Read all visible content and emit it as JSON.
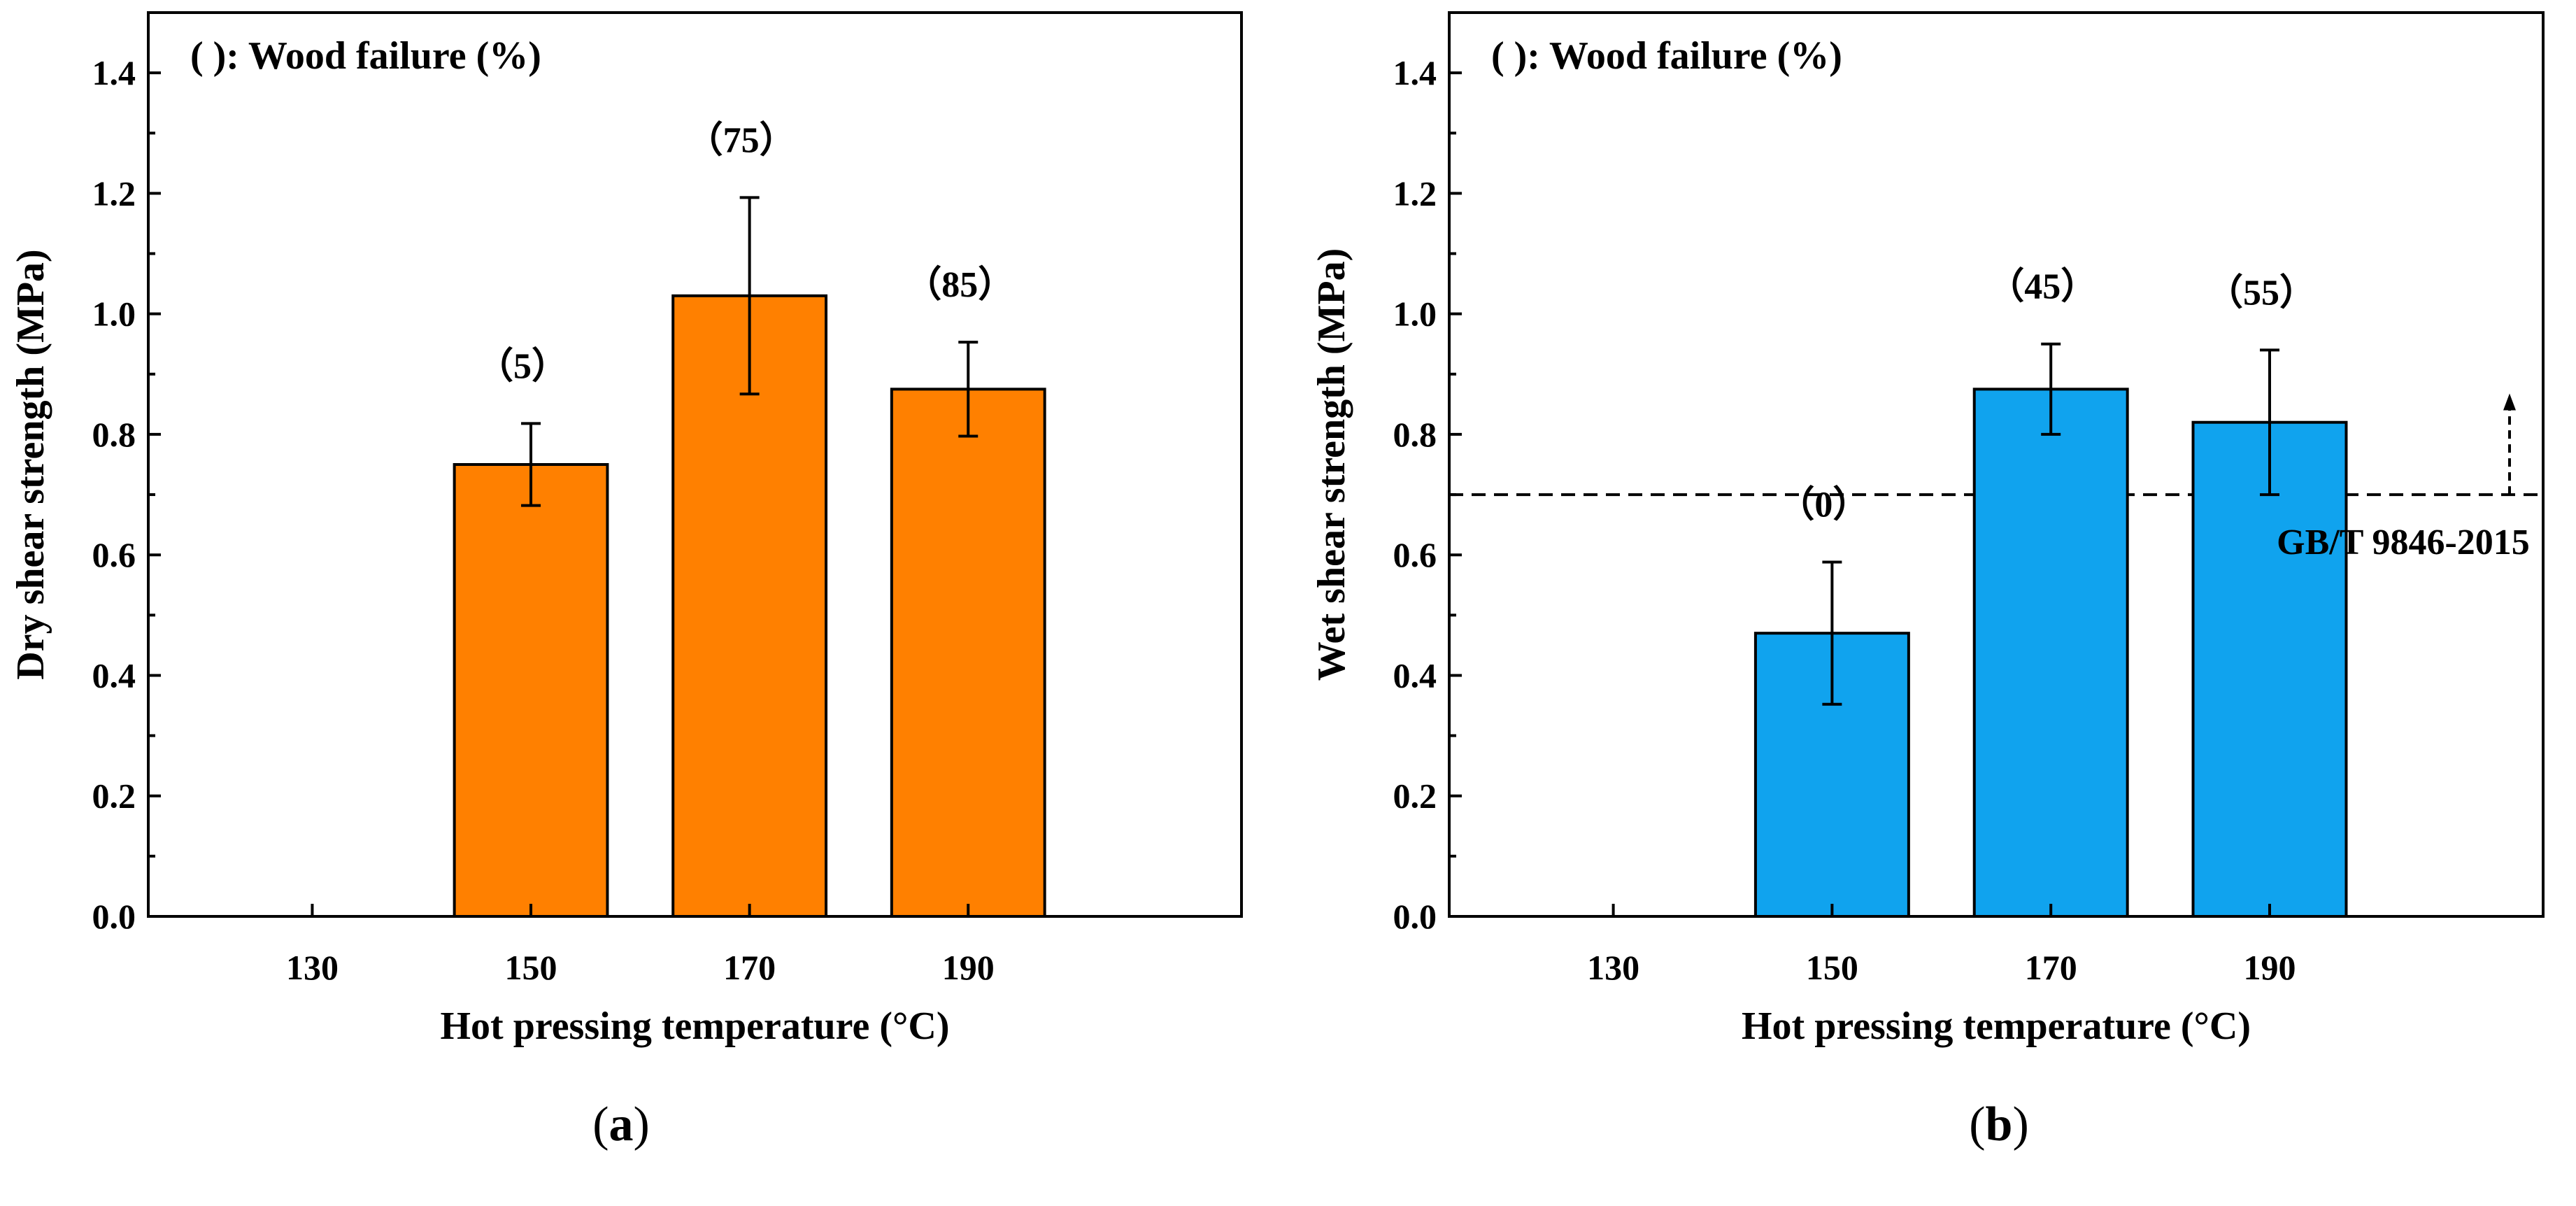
{
  "chart_data": [
    {
      "type": "bar",
      "panel_label_open": "(",
      "panel_label_letter": "a",
      "panel_label_close": ")",
      "note": "( ): Wood failure (%)",
      "xlabel": "Hot pressing temperature (°C)",
      "ylabel": "Dry shear strength (MPa)",
      "categories": [
        "130",
        "150",
        "170",
        "190"
      ],
      "values": [
        0,
        0.75,
        1.03,
        0.875
      ],
      "errors": [
        0,
        0.068,
        0.163,
        0.078
      ],
      "wood_failure_labels": [
        "",
        "（5）",
        "（75）",
        "（85）"
      ],
      "ylim": [
        0,
        1.5
      ],
      "yticks": [
        "0.0",
        "0.2",
        "0.4",
        "0.6",
        "0.8",
        "1.0",
        "1.2",
        "1.4"
      ],
      "bar_color": "#ff8000",
      "reference_line": null
    },
    {
      "type": "bar",
      "panel_label_open": "(",
      "panel_label_letter": "b",
      "panel_label_close": ")",
      "note": "( ): Wood failure (%)",
      "xlabel": "Hot pressing temperature (°C)",
      "ylabel": "Wet shear strength (MPa)",
      "categories": [
        "130",
        "150",
        "170",
        "190"
      ],
      "values": [
        0,
        0.47,
        0.875,
        0.82
      ],
      "errors": [
        0,
        0.118,
        0.075,
        0.12
      ],
      "wood_failure_labels": [
        "",
        "（0）",
        "（45）",
        "（55）"
      ],
      "ylim": [
        0,
        1.5
      ],
      "yticks": [
        "0.0",
        "0.2",
        "0.4",
        "0.6",
        "0.8",
        "1.0",
        "1.2",
        "1.4"
      ],
      "bar_color": "#10a3ee",
      "reference_line": {
        "value": 0.7,
        "label": "GB/T 9846-2015"
      }
    }
  ]
}
